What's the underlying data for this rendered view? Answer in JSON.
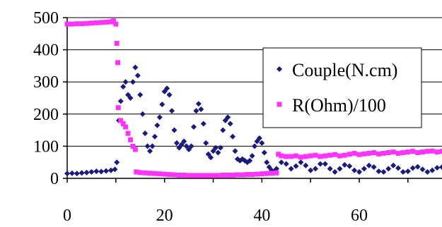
{
  "chart_data": {
    "type": "scatter",
    "title": "",
    "xlabel": "",
    "ylabel": "",
    "xlim": [
      0,
      77
    ],
    "ylim": [
      0,
      500
    ],
    "x_ticks": [
      0,
      20,
      40,
      60
    ],
    "y_ticks": [
      0,
      100,
      200,
      300,
      400,
      500
    ],
    "grid": "horizontal",
    "legend": "right",
    "series": [
      {
        "name": "Couple(N.cm)",
        "color": "#1a1a7a",
        "marker": "diamond",
        "points": [
          [
            0,
            15
          ],
          [
            1,
            16
          ],
          [
            2,
            15
          ],
          [
            3,
            17
          ],
          [
            4,
            18
          ],
          [
            5,
            20
          ],
          [
            6,
            22
          ],
          [
            7,
            21
          ],
          [
            8,
            23
          ],
          [
            9,
            25
          ],
          [
            9.8,
            28
          ],
          [
            10.2,
            50
          ],
          [
            10.6,
            180
          ],
          [
            11,
            240
          ],
          [
            11.5,
            285
          ],
          [
            12,
            300
          ],
          [
            12.5,
            260
          ],
          [
            13,
            250
          ],
          [
            13.5,
            300
          ],
          [
            14,
            345
          ],
          [
            14.5,
            320
          ],
          [
            15,
            260
          ],
          [
            15.5,
            200
          ],
          [
            16,
            140
          ],
          [
            16.5,
            100
          ],
          [
            17,
            85
          ],
          [
            17.5,
            100
          ],
          [
            18,
            130
          ],
          [
            18.5,
            165
          ],
          [
            19,
            190
          ],
          [
            19.5,
            230
          ],
          [
            20,
            270
          ],
          [
            20.5,
            280
          ],
          [
            21,
            260
          ],
          [
            21.5,
            210
          ],
          [
            22,
            150
          ],
          [
            22.5,
            110
          ],
          [
            23,
            95
          ],
          [
            23.5,
            105
          ],
          [
            24,
            115
          ],
          [
            24.5,
            100
          ],
          [
            25,
            90
          ],
          [
            25.5,
            100
          ],
          [
            26,
            160
          ],
          [
            26.5,
            210
          ],
          [
            27,
            232
          ],
          [
            27.5,
            215
          ],
          [
            28,
            170
          ],
          [
            28.5,
            110
          ],
          [
            29,
            75
          ],
          [
            29.5,
            65
          ],
          [
            30,
            85
          ],
          [
            30.5,
            95
          ],
          [
            31,
            80
          ],
          [
            31.5,
            95
          ],
          [
            32,
            150
          ],
          [
            32.5,
            180
          ],
          [
            33,
            190
          ],
          [
            33.5,
            170
          ],
          [
            34,
            130
          ],
          [
            34.5,
            85
          ],
          [
            35,
            60
          ],
          [
            35.5,
            55
          ],
          [
            36,
            60
          ],
          [
            36.5,
            55
          ],
          [
            37,
            50
          ],
          [
            37.5,
            55
          ],
          [
            38,
            70
          ],
          [
            38.5,
            100
          ],
          [
            39,
            115
          ],
          [
            39.5,
            125
          ],
          [
            40,
            110
          ],
          [
            40.5,
            80
          ],
          [
            41,
            50
          ],
          [
            41.5,
            35
          ],
          [
            42,
            25
          ],
          [
            42.5,
            22
          ],
          [
            43,
            30
          ],
          [
            44,
            50
          ],
          [
            45,
            45
          ],
          [
            46,
            30
          ],
          [
            47,
            38
          ],
          [
            48,
            50
          ],
          [
            49,
            40
          ],
          [
            50,
            25
          ],
          [
            51,
            30
          ],
          [
            52,
            45
          ],
          [
            53,
            45
          ],
          [
            54,
            30
          ],
          [
            55,
            20
          ],
          [
            56,
            30
          ],
          [
            57,
            42
          ],
          [
            58,
            38
          ],
          [
            59,
            25
          ],
          [
            60,
            20
          ],
          [
            61,
            30
          ],
          [
            62,
            40
          ],
          [
            63,
            35
          ],
          [
            64,
            22
          ],
          [
            65,
            20
          ],
          [
            66,
            30
          ],
          [
            67,
            40
          ],
          [
            68,
            32
          ],
          [
            69,
            20
          ],
          [
            70,
            22
          ],
          [
            71,
            32
          ],
          [
            72,
            36
          ],
          [
            73,
            28
          ],
          [
            74,
            20
          ],
          [
            75,
            25
          ],
          [
            76,
            33
          ],
          [
            77,
            35
          ]
        ]
      },
      {
        "name": "R(Ohm)/100",
        "color": "#ff33ff",
        "marker": "square",
        "points": [
          [
            0,
            480
          ],
          [
            1,
            480
          ],
          [
            2,
            481
          ],
          [
            3,
            481
          ],
          [
            4,
            482
          ],
          [
            5,
            483
          ],
          [
            6,
            484
          ],
          [
            7,
            485
          ],
          [
            8,
            486
          ],
          [
            9,
            487
          ],
          [
            9.5,
            490
          ],
          [
            10,
            480
          ],
          [
            10.2,
            420
          ],
          [
            10.4,
            360
          ],
          [
            10.5,
            220
          ],
          [
            11,
            180
          ],
          [
            11.5,
            170
          ],
          [
            12,
            160
          ],
          [
            12.5,
            140
          ],
          [
            13,
            120
          ],
          [
            13.5,
            100
          ],
          [
            14,
            90
          ],
          [
            14.2,
            20
          ],
          [
            15,
            18
          ],
          [
            16,
            17
          ],
          [
            17,
            16
          ],
          [
            18,
            15
          ],
          [
            19,
            14
          ],
          [
            20,
            13
          ],
          [
            21,
            12
          ],
          [
            22,
            11
          ],
          [
            23,
            10
          ],
          [
            24,
            10
          ],
          [
            25,
            9
          ],
          [
            26,
            9
          ],
          [
            27,
            9
          ],
          [
            28,
            9
          ],
          [
            29,
            9
          ],
          [
            30,
            9
          ],
          [
            31,
            9
          ],
          [
            32,
            10
          ],
          [
            33,
            10
          ],
          [
            34,
            10
          ],
          [
            35,
            11
          ],
          [
            36,
            11
          ],
          [
            37,
            12
          ],
          [
            38,
            12
          ],
          [
            39,
            13
          ],
          [
            40,
            14
          ],
          [
            41,
            15
          ],
          [
            42,
            16
          ],
          [
            43,
            17
          ],
          [
            43.4,
            75
          ],
          [
            44,
            70
          ],
          [
            45,
            68
          ],
          [
            46,
            68
          ],
          [
            47,
            70
          ],
          [
            48,
            66
          ],
          [
            49,
            68
          ],
          [
            50,
            70
          ],
          [
            51,
            72
          ],
          [
            52,
            68
          ],
          [
            53,
            70
          ],
          [
            54,
            72
          ],
          [
            55,
            74
          ],
          [
            56,
            70
          ],
          [
            57,
            72
          ],
          [
            58,
            75
          ],
          [
            59,
            78
          ],
          [
            60,
            74
          ],
          [
            61,
            76
          ],
          [
            62,
            78
          ],
          [
            63,
            80
          ],
          [
            64,
            76
          ],
          [
            65,
            78
          ],
          [
            66,
            80
          ],
          [
            67,
            82
          ],
          [
            68,
            78
          ],
          [
            69,
            80
          ],
          [
            70,
            82
          ],
          [
            71,
            84
          ],
          [
            72,
            80
          ],
          [
            73,
            82
          ],
          [
            74,
            84
          ],
          [
            75,
            85
          ],
          [
            76,
            82
          ],
          [
            77,
            84
          ]
        ]
      }
    ]
  }
}
